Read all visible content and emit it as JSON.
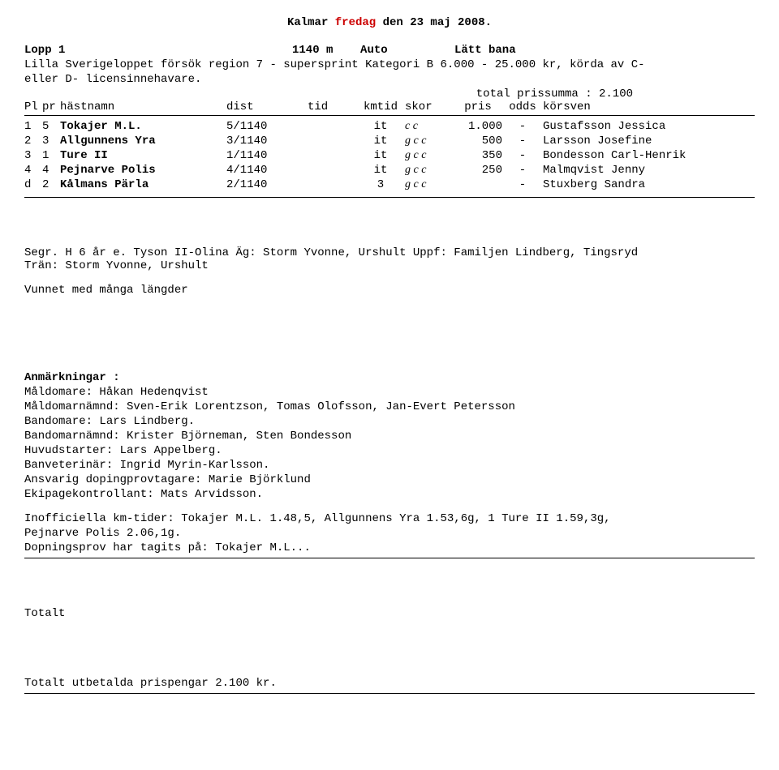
{
  "title": {
    "venue": "Kalmar",
    "weekday": "fredag",
    "date_rest": "den 23 maj 2008."
  },
  "race": {
    "lopp_label": "Lopp 1",
    "distance": "1140 m",
    "start_type": "Auto",
    "track": "Lätt bana",
    "subhead1": "Lilla Sverigeloppet försök region 7 - supersprint Kategori B 6.000 - 25.000 kr, körda av C-",
    "subhead2": "eller D- licensinnehavare.",
    "total_prize": "total prissumma : 2.100"
  },
  "columns": {
    "pl": "Pl",
    "pr": "pr",
    "name": "hästnamn",
    "dist": "dist",
    "tid": "tid",
    "kmtid": "kmtid",
    "skor": "skor",
    "pris": "pris",
    "odds": "odds",
    "korsven": "körsven"
  },
  "rows": [
    {
      "pl": "1",
      "pr": "5",
      "name": "Tokajer M.L.",
      "dist": "5/1140",
      "tid": "",
      "kmtid": "it",
      "skor": "c c",
      "pris": "1.000",
      "odds": "-",
      "kors": "Gustafsson Jessica"
    },
    {
      "pl": "2",
      "pr": "3",
      "name": "Allgunnens Yra",
      "dist": "3/1140",
      "tid": "",
      "kmtid": "it",
      "skor": "g c c",
      "pris": "500",
      "odds": "-",
      "kors": "Larsson Josefine"
    },
    {
      "pl": "3",
      "pr": "1",
      "name": "Ture II",
      "dist": "1/1140",
      "tid": "",
      "kmtid": "it",
      "skor": "g c c",
      "pris": "350",
      "odds": "-",
      "kors": "Bondesson Carl-Henrik"
    },
    {
      "pl": "4",
      "pr": "4",
      "name": "Pejnarve Polis",
      "dist": "4/1140",
      "tid": "",
      "kmtid": "it",
      "skor": "g c c",
      "pris": "250",
      "odds": "-",
      "kors": "Malmqvist Jenny"
    },
    {
      "pl": "d",
      "pr": "2",
      "name": "Kålmans Pärla",
      "dist": "2/1140",
      "tid": "",
      "kmtid": "3",
      "skor": "g c c",
      "pris": "",
      "odds": "-",
      "kors": "Stuxberg Sandra"
    }
  ],
  "winner": {
    "line1": "Segr. H 6 år e. Tyson II-Olina Äg: Storm Yvonne, Urshult Uppf: Familjen Lindberg, Tingsryd",
    "line2": "Trän: Storm Yvonne, Urshult",
    "line3": "Vunnet med många längder"
  },
  "notes": {
    "heading": "Anmärkningar :",
    "lines": [
      "Måldomare: Håkan Hedenqvist",
      "Måldomarnämnd: Sven-Erik Lorentzson, Tomas Olofsson, Jan-Evert Petersson",
      "Bandomare: Lars Lindberg.",
      "Bandomarnämnd: Krister Björneman, Sten Bondesson",
      "Huvudstarter: Lars Appelberg.",
      "Banveterinär: Ingrid Myrin-Karlsson.",
      "Ansvarig dopingprovtagare: Marie Björklund",
      "Ekipagekontrollant: Mats Arvidsson."
    ],
    "unofficial1": "Inofficiella km-tider: Tokajer M.L. 1.48,5, Allgunnens Yra 1.53,6g, 1 Ture II 1.59,3g,",
    "unofficial2": "Pejnarve Polis 2.06,1g.",
    "doping": "Dopningsprov har tagits på: Tokajer M.L..."
  },
  "totals": {
    "label": "Totalt",
    "payout": "Totalt utbetalda prispengar 2.100 kr."
  }
}
